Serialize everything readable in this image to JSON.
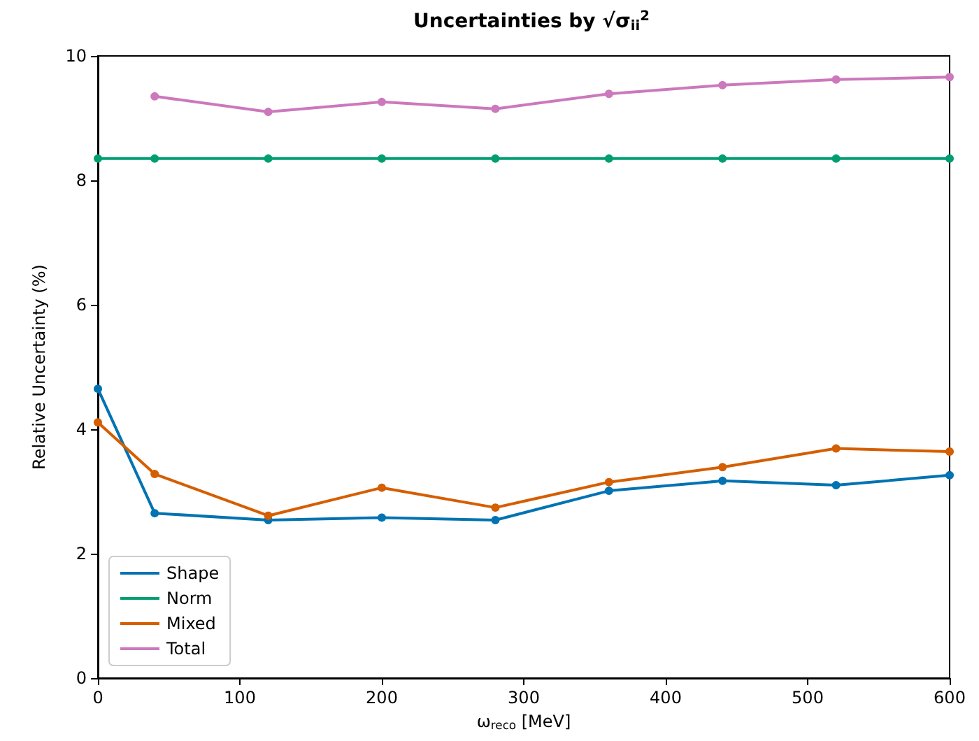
{
  "chart_data": {
    "type": "line",
    "title": "Uncertainties by √σ$_{ii}$$^{2}$",
    "xlabel": "ω$_{reco}$ [MeV]",
    "ylabel": "Relative Uncertainty (%)",
    "x": [
      0,
      40,
      120,
      200,
      280,
      360,
      440,
      520,
      600
    ],
    "series": [
      {
        "name": "Shape",
        "color": "#0173b2",
        "values": [
          4.65,
          2.65,
          2.54,
          2.58,
          2.54,
          3.01,
          3.17,
          3.1,
          3.26
        ]
      },
      {
        "name": "Norm",
        "color": "#029e73",
        "values": [
          8.35,
          8.35,
          8.35,
          8.35,
          8.35,
          8.35,
          8.35,
          8.35,
          8.35
        ]
      },
      {
        "name": "Mixed",
        "color": "#d55e00",
        "values": [
          4.11,
          3.28,
          2.61,
          3.06,
          2.74,
          3.15,
          3.39,
          3.69,
          3.64
        ]
      },
      {
        "name": "Total",
        "color": "#cc78bc",
        "values": [
          null,
          9.35,
          9.1,
          9.26,
          9.15,
          9.39,
          9.53,
          9.62,
          9.66
        ]
      }
    ],
    "xlim": [
      0,
      600
    ],
    "xticks": [
      0,
      100,
      200,
      300,
      400,
      500,
      600
    ],
    "ylim": [
      0,
      10
    ],
    "yticks": [
      0,
      2,
      4,
      6,
      8,
      10
    ],
    "grid": false,
    "legend": "bottom left",
    "marker": "circle",
    "line_style": "solid"
  }
}
